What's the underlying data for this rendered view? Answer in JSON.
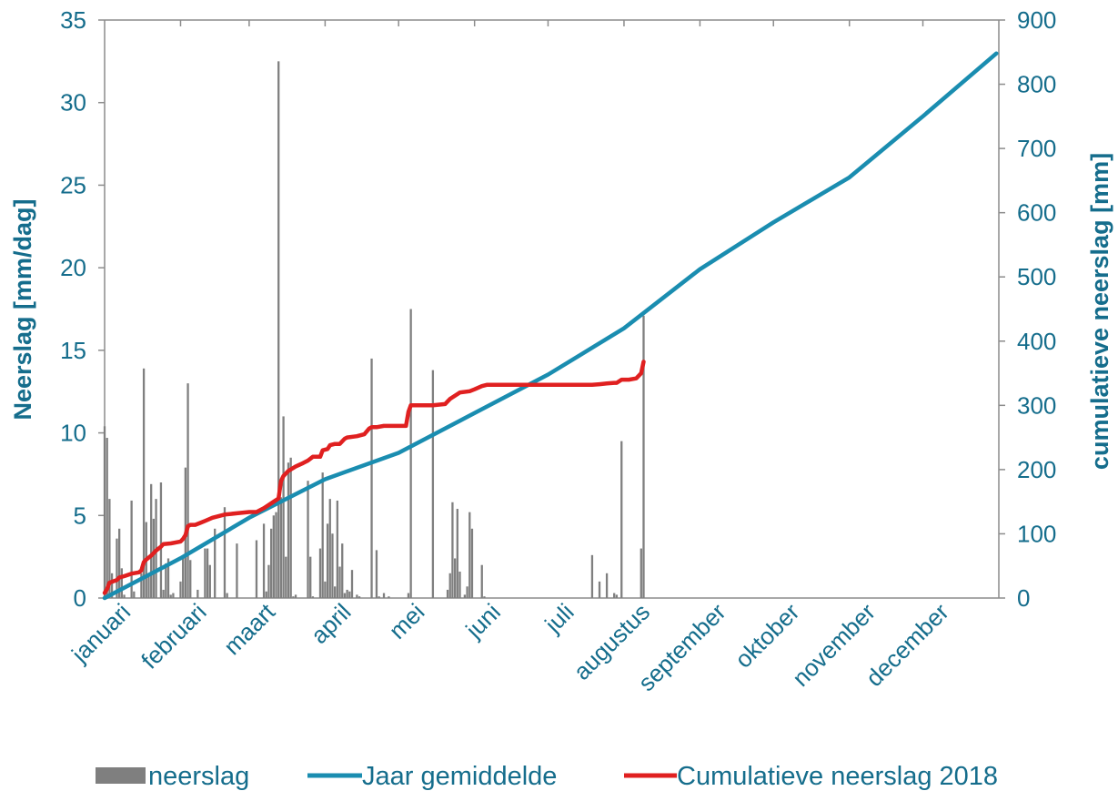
{
  "chart_data": {
    "type": "bar+line",
    "title": "",
    "colors": {
      "bars": "#7f7f7f",
      "avg_line": "#1a8db0",
      "cum_line": "#e02020",
      "axis_text": "#156d8c",
      "axis_line": "#8c8c8c"
    },
    "x_axis": {
      "months": [
        "januari",
        "februari",
        "maart",
        "april",
        "mei",
        "juni",
        "juli",
        "augustus",
        "september",
        "oktober",
        "november",
        "december"
      ],
      "unit": "day of year",
      "range": [
        1,
        366
      ]
    },
    "y_left": {
      "label": "Neerslag [mm/dag]",
      "ylim": [
        0,
        35
      ],
      "ticks": [
        0,
        5,
        10,
        15,
        20,
        25,
        30,
        35
      ]
    },
    "y_right": {
      "label": "cumulatieve neerslag [mm]",
      "ylim": [
        0,
        900
      ],
      "ticks": [
        0,
        100,
        200,
        300,
        400,
        500,
        600,
        700,
        800,
        900
      ]
    },
    "legend": {
      "position": "bottom",
      "entries": [
        "neerslag",
        "Jaar gemiddelde",
        "Cumulatieve neerslag 2018"
      ]
    },
    "series": [
      {
        "name": "neerslag",
        "type": "bar",
        "axis": "left",
        "x": [
          1,
          2,
          3,
          4,
          6,
          7,
          8,
          9,
          12,
          13,
          16,
          17,
          18,
          19,
          20,
          21,
          22,
          24,
          25,
          26,
          27,
          28,
          29,
          32,
          33,
          34,
          35,
          36,
          39,
          42,
          43,
          44,
          46,
          50,
          51,
          55,
          63,
          66,
          67,
          68,
          69,
          70,
          71,
          72,
          73,
          74,
          75,
          76,
          77,
          78,
          79,
          84,
          85,
          86,
          89,
          90,
          91,
          92,
          93,
          94,
          95,
          96,
          97,
          98,
          99,
          100,
          101,
          102,
          104,
          105,
          110,
          112,
          113,
          115,
          117,
          125,
          126,
          135,
          141,
          142,
          143,
          144,
          145,
          146,
          148,
          149,
          150,
          151,
          155,
          156,
          200,
          203,
          206,
          209,
          210,
          212,
          220,
          221
        ],
        "values": [
          10.4,
          9.7,
          6.0,
          1.5,
          3.6,
          4.2,
          1.8,
          0.2,
          5.9,
          0.4,
          1.5,
          13.9,
          4.6,
          1.3,
          6.9,
          4.8,
          6.0,
          7.0,
          0.5,
          2.1,
          2.4,
          0.2,
          0.3,
          1.0,
          2.4,
          7.9,
          13.0,
          2.3,
          0.5,
          3.0,
          3.0,
          2.0,
          4.2,
          5.5,
          0.3,
          3.3,
          3.5,
          4.5,
          0.4,
          2.0,
          4.2,
          5.0,
          5.2,
          32.5,
          6.1,
          11.0,
          2.5,
          8.2,
          8.5,
          0.1,
          0.2,
          7.1,
          2.5,
          0.1,
          3.0,
          7.6,
          1.0,
          4.5,
          6.0,
          3.9,
          0.7,
          5.9,
          1.9,
          3.3,
          0.3,
          0.5,
          0.4,
          1.7,
          0.2,
          0.1,
          14.5,
          2.9,
          0.1,
          0.3,
          0.1,
          0.3,
          17.5,
          13.8,
          0.5,
          1.5,
          5.8,
          2.4,
          5.4,
          1.6,
          0.2,
          0.7,
          5.2,
          4.2,
          2.0,
          0.1,
          2.6,
          1.0,
          1.5,
          0.3,
          0.2,
          9.5,
          3.0,
          17.1
        ]
      },
      {
        "name": "Jaar gemiddelde",
        "type": "line",
        "axis": "right",
        "x": [
          1,
          32,
          60,
          91,
          121,
          152,
          182,
          213,
          244,
          274,
          305,
          335,
          365
        ],
        "values": [
          0,
          62,
          125,
          185,
          226,
          288,
          348,
          420,
          512,
          585,
          655,
          750,
          848
        ]
      },
      {
        "name": "Cumulatieve neerslag 2018",
        "type": "line",
        "axis": "right",
        "x": [
          1,
          2,
          3,
          6,
          7,
          9,
          12,
          15,
          16,
          17,
          18,
          20,
          22,
          24,
          25,
          28,
          32,
          33,
          34,
          35,
          36,
          38,
          40,
          42,
          45,
          50,
          55,
          60,
          63,
          66,
          68,
          70,
          72,
          73,
          74,
          76,
          79,
          82,
          84,
          86,
          89,
          90,
          92,
          93,
          95,
          97,
          99,
          100,
          104,
          107,
          109,
          110,
          112,
          115,
          118,
          120,
          124,
          125,
          126,
          127,
          135,
          140,
          141,
          142,
          146,
          150,
          152,
          155,
          157,
          160,
          170,
          180,
          190,
          200,
          203,
          206,
          209,
          210,
          212,
          215,
          218,
          220,
          221
        ],
        "values": [
          8,
          14,
          24,
          28,
          32,
          34,
          38,
          40,
          43,
          56,
          60,
          66,
          74,
          80,
          84,
          85,
          88,
          92,
          98,
          112,
          114,
          114,
          117,
          120,
          125,
          130,
          132,
          134,
          134,
          140,
          145,
          150,
          155,
          182,
          190,
          198,
          205,
          210,
          214,
          220,
          220,
          230,
          232,
          238,
          240,
          240,
          248,
          250,
          252,
          255,
          264,
          266,
          266,
          268,
          268,
          268,
          268,
          290,
          300,
          300,
          300,
          302,
          306,
          310,
          320,
          322,
          325,
          330,
          332,
          332,
          332,
          332,
          332,
          332,
          333,
          334,
          335,
          335,
          340,
          340,
          342,
          350,
          368
        ]
      }
    ]
  }
}
